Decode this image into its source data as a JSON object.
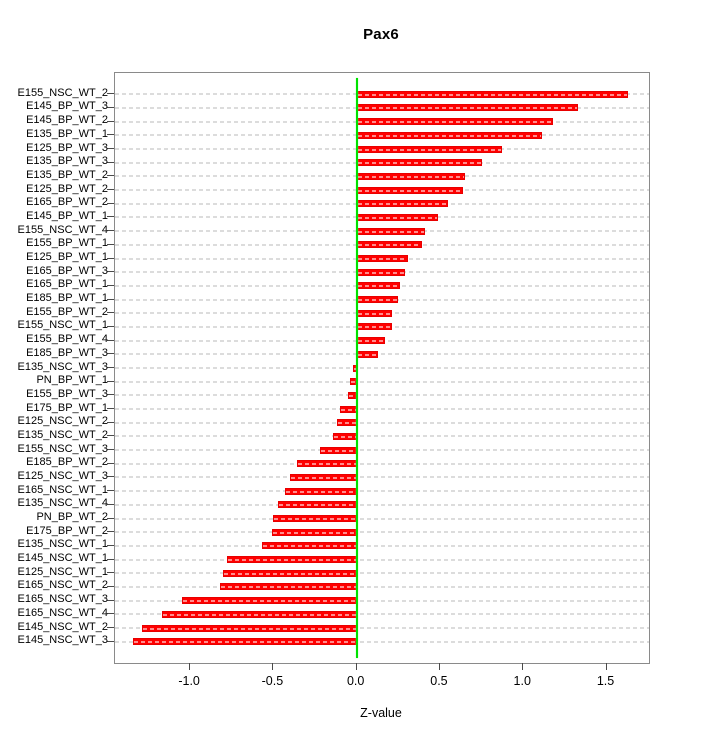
{
  "title": "Pax6",
  "chart_data": {
    "type": "bar",
    "orientation": "horizontal",
    "title": "Pax6",
    "xlabel": "Z-value",
    "bar_color": "#ff0000",
    "zero_line_color": "#00e200",
    "grid": true,
    "legend": "none",
    "xlim": [
      -1.451,
      1.755
    ],
    "xticks": [
      -1.0,
      -0.5,
      0.0,
      0.5,
      1.0,
      1.5
    ],
    "xtick_labels": [
      "-1.0",
      "-0.5",
      "0.0",
      "0.5",
      "1.0",
      "1.5"
    ],
    "categories": [
      "E155_NSC_WT_2",
      "E145_BP_WT_3",
      "E145_BP_WT_2",
      "E135_BP_WT_1",
      "E125_BP_WT_3",
      "E135_BP_WT_3",
      "E135_BP_WT_2",
      "E125_BP_WT_2",
      "E165_BP_WT_2",
      "E145_BP_WT_1",
      "E155_NSC_WT_4",
      "E155_BP_WT_1",
      "E125_BP_WT_1",
      "E165_BP_WT_3",
      "E165_BP_WT_1",
      "E185_BP_WT_1",
      "E155_BP_WT_2",
      "E155_NSC_WT_1",
      "E155_BP_WT_4",
      "E185_BP_WT_3",
      "E135_NSC_WT_3",
      "PN_BP_WT_1",
      "E155_BP_WT_3",
      "E175_BP_WT_1",
      "E125_NSC_WT_2",
      "E135_NSC_WT_2",
      "E155_NSC_WT_3",
      "E185_BP_WT_2",
      "E125_NSC_WT_3",
      "E165_NSC_WT_1",
      "E135_NSC_WT_4",
      "PN_BP_WT_2",
      "E175_BP_WT_2",
      "E135_NSC_WT_1",
      "E145_NSC_WT_1",
      "E125_NSC_WT_1",
      "E165_NSC_WT_2",
      "E165_NSC_WT_3",
      "E165_NSC_WT_4",
      "E145_NSC_WT_2",
      "E145_NSC_WT_3"
    ],
    "values": [
      1.63,
      1.33,
      1.18,
      1.11,
      0.87,
      0.75,
      0.65,
      0.64,
      0.55,
      0.49,
      0.41,
      0.39,
      0.31,
      0.29,
      0.26,
      0.25,
      0.21,
      0.21,
      0.17,
      0.13,
      -0.02,
      -0.04,
      -0.05,
      -0.1,
      -0.12,
      -0.14,
      -0.22,
      -0.36,
      -0.4,
      -0.43,
      -0.47,
      -0.5,
      -0.51,
      -0.57,
      -0.78,
      -0.8,
      -0.82,
      -1.05,
      -1.17,
      -1.29,
      -1.34
    ]
  }
}
